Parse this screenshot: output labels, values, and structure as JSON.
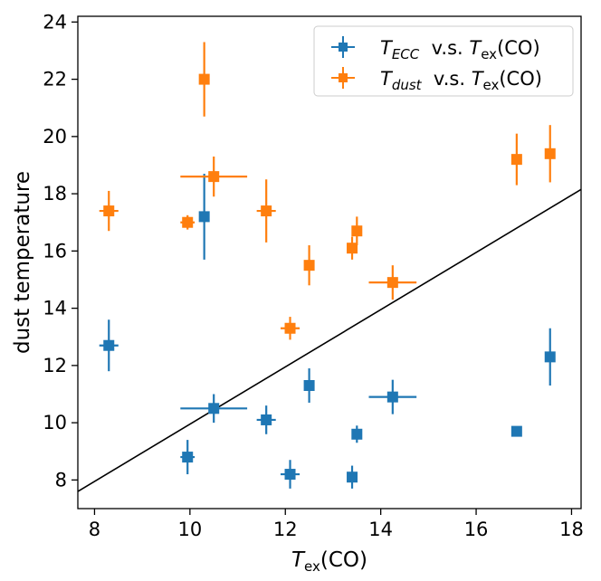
{
  "chart_data": {
    "type": "scatter",
    "xlabel": {
      "main": "T",
      "sub": "ex",
      "tail": "(CO)"
    },
    "ylabel": "dust temperature",
    "xlim": [
      7.65,
      18.2
    ],
    "ylim": [
      7,
      24.2
    ],
    "xticks": [
      8,
      10,
      12,
      14,
      16,
      18
    ],
    "yticks": [
      8,
      10,
      12,
      14,
      16,
      18,
      20,
      22,
      24
    ],
    "grid": false,
    "legend_position": "top-right",
    "reference_line": {
      "points": [
        [
          7.65,
          7.6
        ],
        [
          18.2,
          18.15
        ]
      ],
      "color": "#000000"
    },
    "series": [
      {
        "name": "T_ECC v.s. T_ex(CO)",
        "legend": {
          "main": "T",
          "sub": "ECC",
          "mid": "  v.s. ",
          "main2": "T",
          "sub2": "ex",
          "tail": "(CO)"
        },
        "color": "#1f77b4",
        "marker": "square",
        "points": [
          {
            "x": 8.3,
            "y": 12.7,
            "xerr": 0.2,
            "yerr": 0.9
          },
          {
            "x": 9.95,
            "y": 8.8,
            "xerr": 0.15,
            "yerr": 0.6
          },
          {
            "x": 10.3,
            "y": 17.2,
            "xerr": 0.0,
            "yerr": 1.5
          },
          {
            "x": 10.5,
            "y": 10.5,
            "xerr": 0.7,
            "yerr": 0.5
          },
          {
            "x": 11.6,
            "y": 10.1,
            "xerr": 0.2,
            "yerr": 0.5
          },
          {
            "x": 12.1,
            "y": 8.2,
            "xerr": 0.2,
            "yerr": 0.5
          },
          {
            "x": 12.5,
            "y": 11.3,
            "xerr": 0.0,
            "yerr": 0.6
          },
          {
            "x": 13.4,
            "y": 8.1,
            "xerr": 0.0,
            "yerr": 0.4
          },
          {
            "x": 13.5,
            "y": 9.6,
            "xerr": 0.0,
            "yerr": 0.3
          },
          {
            "x": 14.25,
            "y": 10.9,
            "xerr": 0.5,
            "yerr": 0.6
          },
          {
            "x": 16.85,
            "y": 9.7,
            "xerr": 0.0,
            "yerr": 0.0
          },
          {
            "x": 17.55,
            "y": 12.3,
            "xerr": 0.0,
            "yerr": 1.0
          }
        ]
      },
      {
        "name": "T_dust v.s. T_ex(CO)",
        "legend": {
          "main": "T",
          "sub": "dust",
          "mid": "  v.s. ",
          "main2": "T",
          "sub2": "ex",
          "tail": "(CO)"
        },
        "color": "#ff7f0e",
        "marker": "square",
        "points": [
          {
            "x": 8.3,
            "y": 17.4,
            "xerr": 0.2,
            "yerr": 0.7
          },
          {
            "x": 9.95,
            "y": 17.0,
            "xerr": 0.15,
            "yerr": 0.25
          },
          {
            "x": 10.3,
            "y": 22.0,
            "xerr": 0.0,
            "yerr": 1.3
          },
          {
            "x": 10.5,
            "y": 18.6,
            "xerr": 0.7,
            "yerr": 0.7
          },
          {
            "x": 11.6,
            "y": 17.4,
            "xerr": 0.2,
            "yerr": 1.1
          },
          {
            "x": 12.1,
            "y": 13.3,
            "xerr": 0.2,
            "yerr": 0.4
          },
          {
            "x": 12.5,
            "y": 15.5,
            "xerr": 0.0,
            "yerr": 0.7
          },
          {
            "x": 13.4,
            "y": 16.1,
            "xerr": 0.0,
            "yerr": 0.4
          },
          {
            "x": 13.5,
            "y": 16.7,
            "xerr": 0.0,
            "yerr": 0.5
          },
          {
            "x": 14.25,
            "y": 14.9,
            "xerr": 0.5,
            "yerr": 0.6
          },
          {
            "x": 16.85,
            "y": 19.2,
            "xerr": 0.0,
            "yerr": 0.9
          },
          {
            "x": 17.55,
            "y": 19.4,
            "xerr": 0.0,
            "yerr": 1.0
          }
        ]
      }
    ]
  }
}
